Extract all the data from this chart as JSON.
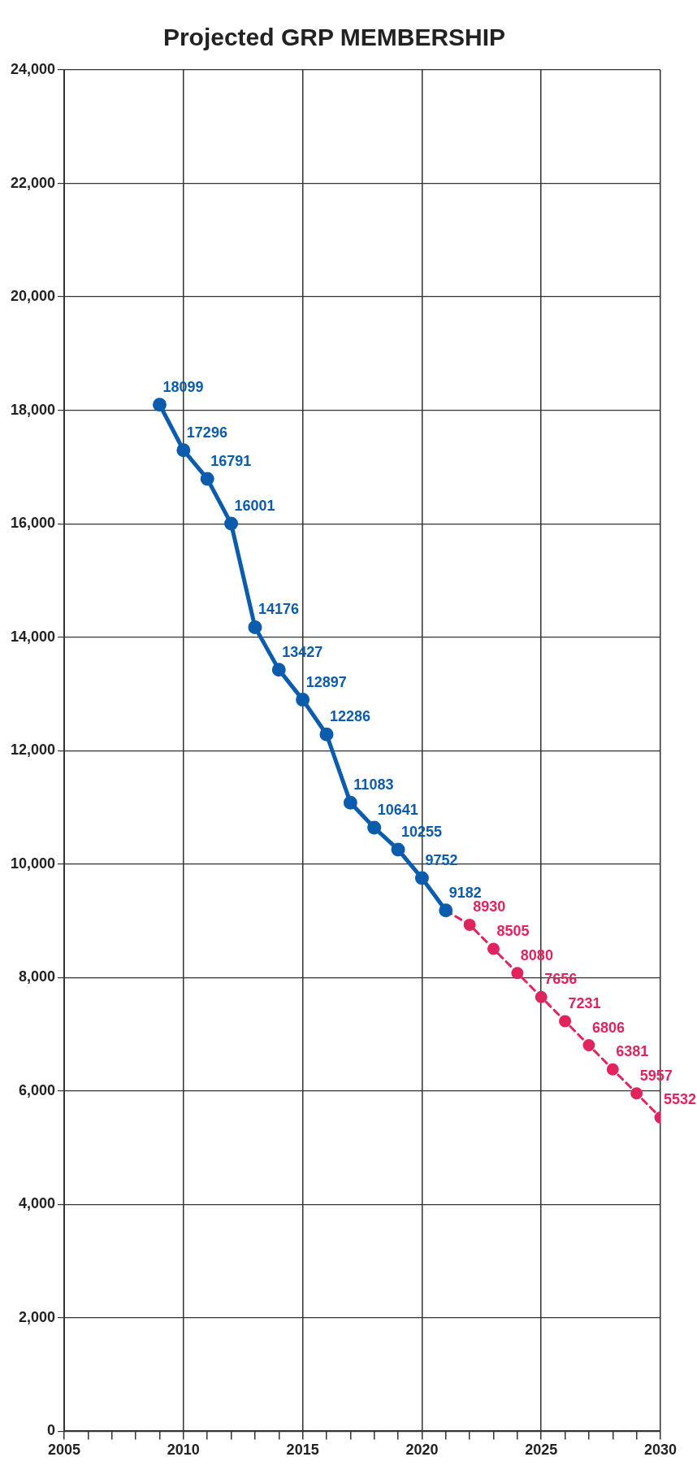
{
  "chart_data": {
    "type": "line",
    "title": "Projected GRP MEMBERSHIP",
    "xlim": [
      2005,
      2030
    ],
    "xticks": [
      2005,
      {
        "value": 2006,
        "label": null
      },
      {
        "value": 2007,
        "label": null
      },
      {
        "value": 2008,
        "label": null
      },
      {
        "value": 2009,
        "label": null
      },
      2010,
      {
        "value": 2011,
        "label": null
      },
      {
        "value": 2012,
        "label": null
      },
      {
        "value": 2013,
        "label": null
      },
      {
        "value": 2014,
        "label": null
      },
      2015,
      {
        "value": 2016,
        "label": null
      },
      {
        "value": 2017,
        "label": null
      },
      {
        "value": 2018,
        "label": null
      },
      {
        "value": 2019,
        "label": null
      },
      2020,
      {
        "value": 2021,
        "label": null
      },
      {
        "value": 2022,
        "label": null
      },
      {
        "value": 2023,
        "label": null
      },
      {
        "value": 2024,
        "label": null
      },
      2025,
      {
        "value": 2026,
        "label": null
      },
      {
        "value": 2027,
        "label": null
      },
      {
        "value": 2028,
        "label": null
      },
      {
        "value": 2029,
        "label": null
      },
      2030
    ],
    "ylim": [
      0,
      24000
    ],
    "yticks": [
      0,
      {
        "value": 2000,
        "label": "2,000"
      },
      {
        "value": 4000,
        "label": "4,000"
      },
      {
        "value": 6000,
        "label": "6,000"
      },
      {
        "value": 8000,
        "label": "8,000"
      },
      {
        "value": 10000,
        "label": "10,000"
      },
      {
        "value": 12000,
        "label": "12,000"
      },
      {
        "value": 14000,
        "label": "14,000"
      },
      {
        "value": 16000,
        "label": "16,000"
      },
      {
        "value": 18000,
        "label": "18,000"
      },
      {
        "value": 20000,
        "label": "20,000"
      },
      {
        "value": 22000,
        "label": "22,000"
      },
      {
        "value": 24000,
        "label": "24,000"
      }
    ],
    "grid": true,
    "marker": "circle",
    "series": [
      {
        "color": "#0b5cad",
        "line_style": "solid",
        "x": [
          2009,
          2010,
          2011,
          2012,
          2013,
          2014,
          2015,
          2016,
          2017,
          2018,
          2019,
          2020,
          2021
        ],
        "values": [
          18099,
          17296,
          16791,
          16001,
          14176,
          13427,
          12897,
          12286,
          11083,
          10641,
          10255,
          9752,
          9182
        ],
        "value_labels": [
          "18099",
          "17296",
          "16791",
          "16001",
          "14176",
          "13427",
          "12897",
          "12286",
          "11083",
          "10641",
          "10255",
          "9752",
          "9182"
        ]
      },
      {
        "color": "#e0245e",
        "line_style": "dashed",
        "x": [
          2021,
          2022,
          2023,
          2024,
          2025,
          2026,
          2027,
          2028,
          2029,
          2030
        ],
        "values": [
          9182,
          8930,
          8505,
          8080,
          7656,
          7231,
          6806,
          6381,
          5957,
          5532
        ],
        "value_labels": [
          null,
          "8930",
          "8505",
          "8080",
          "7656",
          "7231",
          "6806",
          "6381",
          "5957",
          "5532"
        ]
      }
    ]
  }
}
